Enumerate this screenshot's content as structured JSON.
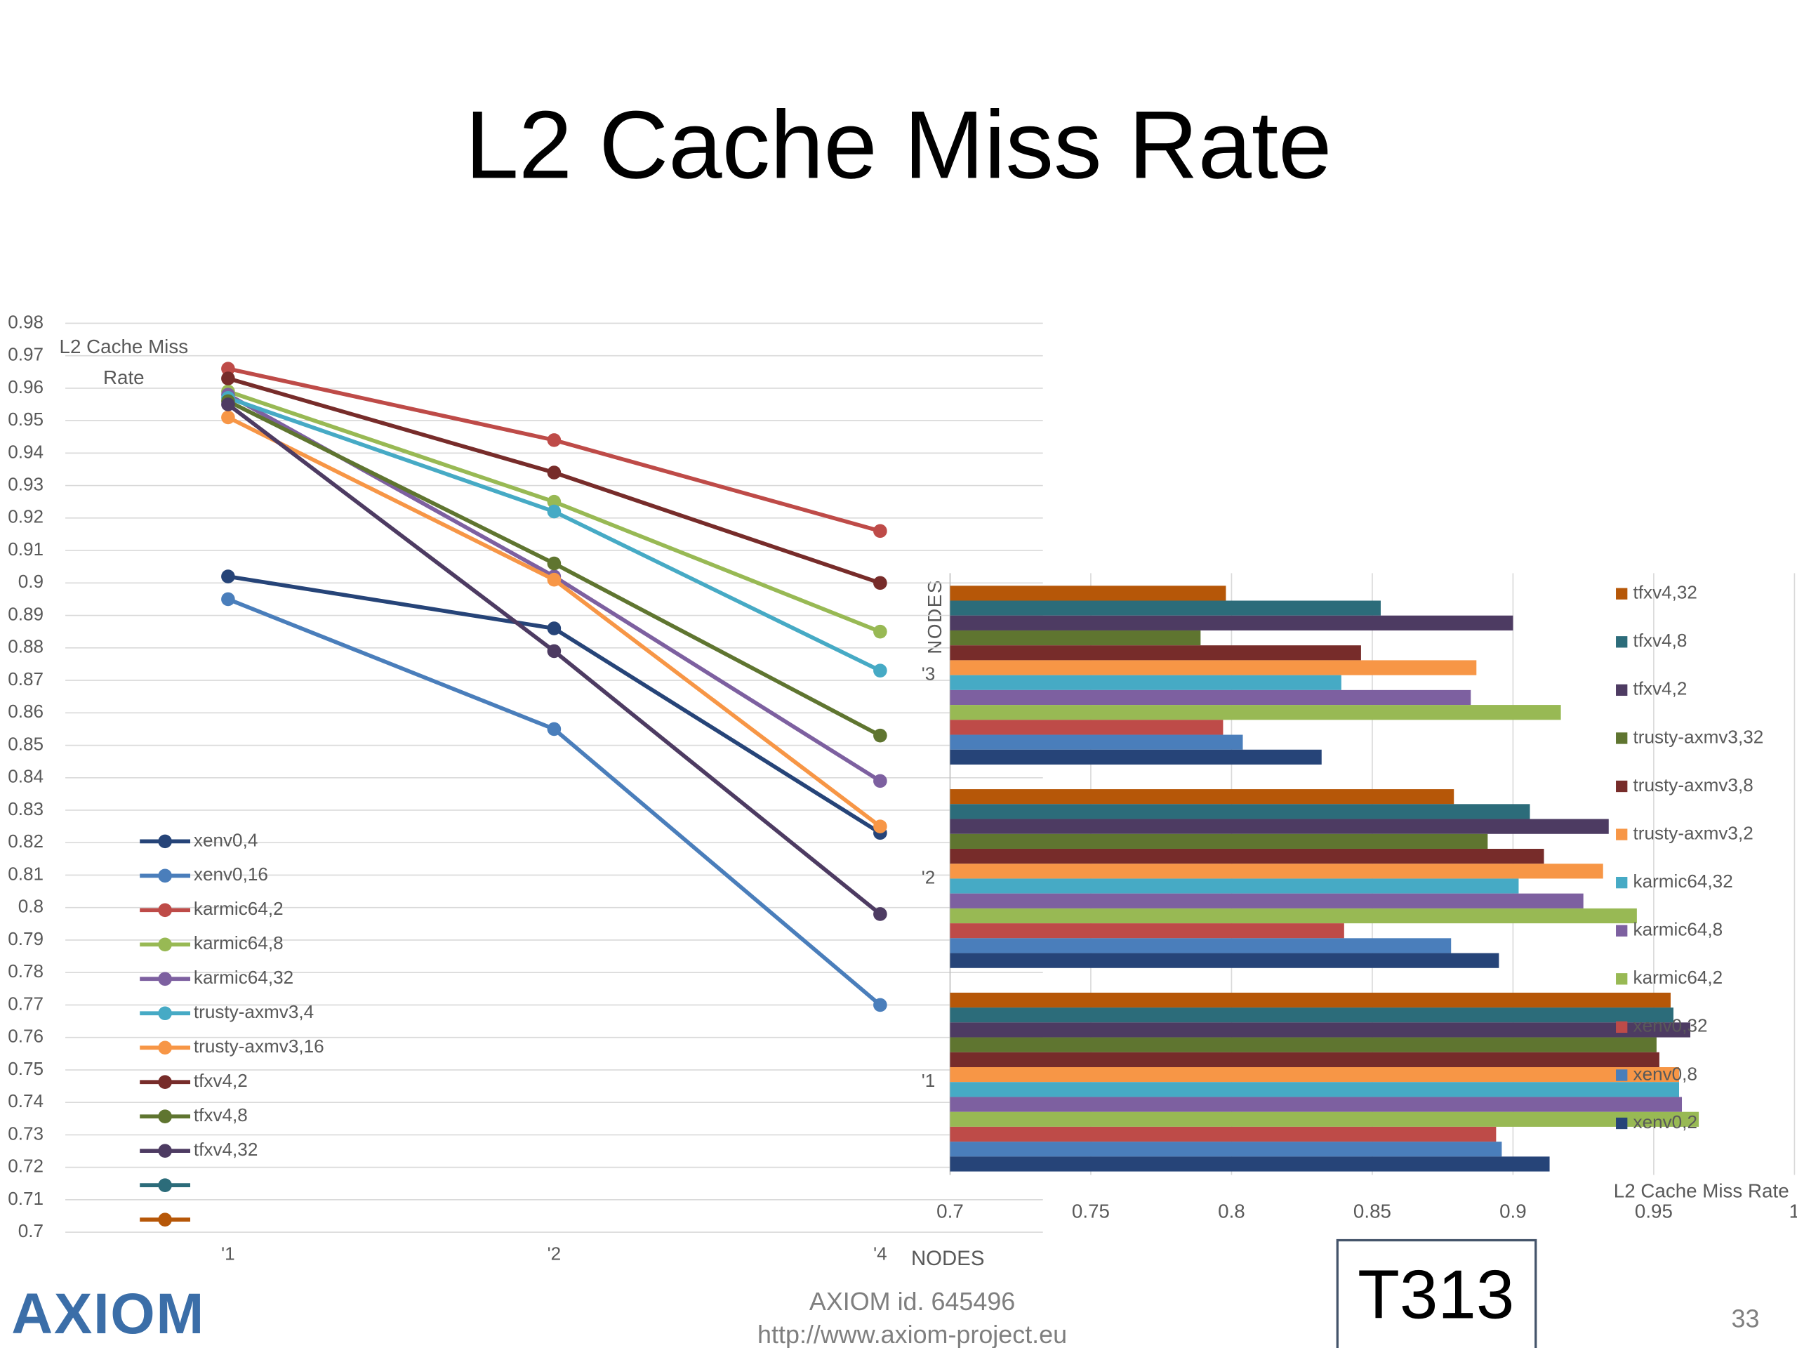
{
  "slide_title": "L2 Cache Miss Rate",
  "chart_data": [
    {
      "type": "line",
      "y_label": "L2 Cache Miss Rate",
      "x_label": "NODES",
      "categories": [
        "'1",
        "'2",
        "'4"
      ],
      "ylim": [
        0.7,
        0.98
      ],
      "yticks": [
        0.98,
        0.97,
        0.96,
        0.95,
        0.94,
        0.93,
        0.92,
        0.91,
        0.9,
        0.89,
        0.88,
        0.87,
        0.86,
        0.85,
        0.84,
        0.83,
        0.82,
        0.81,
        0.8,
        0.79,
        0.78,
        0.77,
        0.76,
        0.75,
        0.74,
        0.73,
        0.72,
        0.71,
        0.7
      ],
      "grid": true,
      "legend": "bottom-left",
      "series": [
        {
          "name": "xenv0,4",
          "color": "#264478",
          "values": [
            0.902,
            0.886,
            0.823
          ]
        },
        {
          "name": "xenv0,16",
          "color": "#4a7ebb",
          "values": [
            0.895,
            0.855,
            0.77
          ]
        },
        {
          "name": "karmic64,2",
          "color": "#be4b48",
          "values": [
            0.966,
            0.944,
            0.916
          ]
        },
        {
          "name": "karmic64,8",
          "color": "#98b954",
          "values": [
            0.959,
            0.925,
            0.885
          ]
        },
        {
          "name": "karmic64,32",
          "color": "#7d60a0",
          "values": [
            0.958,
            0.902,
            0.839
          ]
        },
        {
          "name": "trusty-axmv3,4",
          "color": "#46aac5",
          "values": [
            0.957,
            0.922,
            0.873
          ]
        },
        {
          "name": "trusty-axmv3,16",
          "color": "#f79646",
          "values": [
            0.951,
            0.901,
            0.825
          ]
        },
        {
          "name": "tfxv4,2",
          "color": "#772c2a",
          "values": [
            0.963,
            0.934,
            0.9
          ]
        },
        {
          "name": "tfxv4,8",
          "color": "#5f7530",
          "values": [
            0.956,
            0.906,
            0.853
          ]
        },
        {
          "name": "tfxv4,32",
          "color": "#4d3b62",
          "values": [
            0.955,
            0.879,
            0.798
          ]
        },
        {
          "color": "#2c6c7a",
          "values": [
            null,
            null,
            null
          ]
        },
        {
          "color": "#b65708",
          "values": [
            null,
            null,
            null
          ]
        }
      ]
    },
    {
      "type": "hbar",
      "x_label": "L2 Cache Miss Rate",
      "y_label": "NODES",
      "categories": [
        "'1",
        "'2",
        "'3"
      ],
      "xlim": [
        0.7,
        1
      ],
      "xticks": [
        0.7,
        0.75,
        0.8,
        0.85,
        0.9,
        0.95,
        1
      ],
      "grid": true,
      "legend": "right",
      "series": [
        {
          "name": "tfxv4,32",
          "color": "#b65708",
          "values": [
            0.956,
            0.879,
            0.798
          ]
        },
        {
          "name": "tfxv4,8",
          "color": "#2c6c7a",
          "values": [
            0.957,
            0.906,
            0.853
          ]
        },
        {
          "name": "tfxv4,2",
          "color": "#4d3b62",
          "values": [
            0.963,
            0.934,
            0.9
          ]
        },
        {
          "name": "trusty-axmv3,32",
          "color": "#5f7530",
          "values": [
            0.951,
            0.891,
            0.789
          ]
        },
        {
          "name": "trusty-axmv3,8",
          "color": "#772c2a",
          "values": [
            0.952,
            0.911,
            0.846
          ]
        },
        {
          "name": "trusty-axmv3,2",
          "color": "#f79646",
          "values": [
            0.959,
            0.932,
            0.887
          ]
        },
        {
          "name": "karmic64,32",
          "color": "#46aac5",
          "values": [
            0.959,
            0.902,
            0.839
          ]
        },
        {
          "name": "karmic64,8",
          "color": "#7d60a0",
          "values": [
            0.96,
            0.925,
            0.885
          ]
        },
        {
          "name": "karmic64,2",
          "color": "#98b954",
          "values": [
            0.966,
            0.944,
            0.917
          ]
        },
        {
          "name": "xenv0,32",
          "color": "#be4b48",
          "values": [
            0.894,
            0.84,
            0.797
          ]
        },
        {
          "name": "xenv0,8",
          "color": "#4a7ebb",
          "values": [
            0.896,
            0.878,
            0.804
          ]
        },
        {
          "name": "xenv0,2",
          "color": "#264478",
          "values": [
            0.913,
            0.895,
            0.832
          ]
        }
      ]
    }
  ],
  "footer": {
    "logo": "AXIOM",
    "project_id": "AXIOM id. 645496",
    "url": "http://www.axiom-project.eu",
    "badge": "T313",
    "page_number": "33"
  }
}
